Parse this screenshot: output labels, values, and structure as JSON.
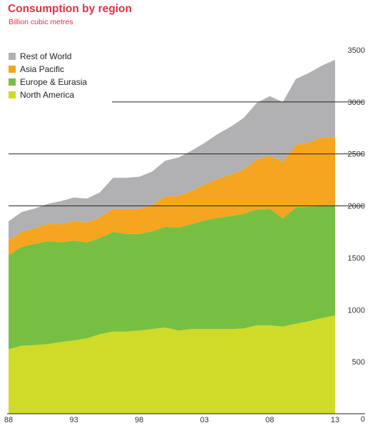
{
  "chart_data": {
    "type": "area",
    "stacked": true,
    "title": "Consumption by region",
    "subtitle": "Billion cubic metres",
    "x": [
      1988,
      1989,
      1990,
      1991,
      1992,
      1993,
      1994,
      1995,
      1996,
      1997,
      1998,
      1999,
      2000,
      2001,
      2002,
      2003,
      2004,
      2005,
      2006,
      2007,
      2008,
      2009,
      2010,
      2011,
      2012,
      2013
    ],
    "x_tick_labels": [
      "88",
      "93",
      "98",
      "03",
      "08",
      "13"
    ],
    "x_tick_values": [
      1988,
      1993,
      1998,
      2003,
      2008,
      2013
    ],
    "y_ticks": [
      0,
      500,
      1000,
      1500,
      2000,
      2500,
      3000,
      3500
    ],
    "ylim": [
      0,
      3500
    ],
    "y_axis_side": "right",
    "legend_position": "top-left",
    "grid": "partial horizontal lines",
    "series": [
      {
        "name": "North America",
        "color": "#cfdb28",
        "values": [
          620,
          655,
          660,
          670,
          690,
          705,
          725,
          765,
          790,
          790,
          800,
          815,
          830,
          800,
          815,
          815,
          815,
          815,
          820,
          850,
          850,
          840,
          865,
          890,
          920,
          945
        ]
      },
      {
        "name": "Europe & Eurasia",
        "color": "#77bf43",
        "values": [
          905,
          950,
          975,
          990,
          960,
          960,
          925,
          925,
          960,
          940,
          930,
          940,
          970,
          990,
          1010,
          1045,
          1070,
          1085,
          1105,
          1115,
          1120,
          1040,
          1120,
          1100,
          1080,
          1065
        ]
      },
      {
        "name": "Asia Pacific",
        "color": "#f5a51f",
        "values": [
          140,
          145,
          150,
          165,
          175,
          190,
          190,
          200,
          220,
          240,
          240,
          255,
          290,
          305,
          320,
          345,
          375,
          400,
          425,
          480,
          510,
          545,
          600,
          620,
          660,
          650
        ]
      },
      {
        "name": "Rest of World",
        "color": "#b1b1b3",
        "values": [
          185,
          190,
          190,
          195,
          220,
          225,
          230,
          240,
          300,
          300,
          310,
          320,
          345,
          370,
          385,
          400,
          430,
          460,
          495,
          545,
          575,
          575,
          635,
          670,
          690,
          745
        ]
      }
    ]
  }
}
